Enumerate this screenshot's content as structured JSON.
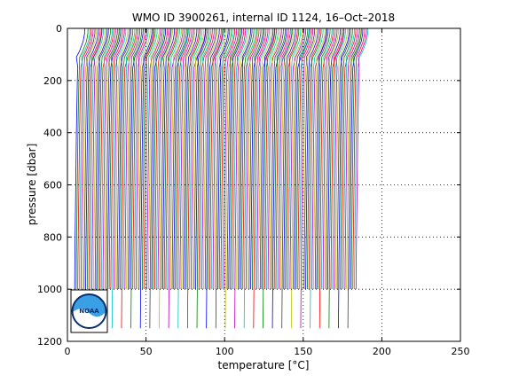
{
  "chart_data": {
    "type": "line",
    "title": "WMO ID 3900261, internal ID 1124, 16–Oct–2018",
    "xlabel": "temperature [°C]",
    "ylabel": "pressure [dbar]",
    "xlim": [
      0,
      250
    ],
    "ylim": [
      1200,
      0
    ],
    "y_reversed": true,
    "xticks": [
      "0",
      "50",
      "100",
      "150",
      "200",
      "250"
    ],
    "yticks": [
      "0",
      "200",
      "400",
      "600",
      "800",
      "1000",
      "1200"
    ],
    "grid": "dotted",
    "profile_offset_degC": 1,
    "profile_count": 180,
    "series_colors": [
      "#0000ff",
      "#008000",
      "#ff0000",
      "#00bfbf",
      "#bf00bf",
      "#bfbf00",
      "#404040"
    ],
    "representative_profile": {
      "pressure": [
        0,
        20,
        50,
        90,
        110,
        150,
        200,
        300,
        400,
        500,
        600,
        700,
        800,
        900,
        1000
      ],
      "temperature": [
        8.5,
        8.4,
        7.5,
        5.0,
        3.2,
        2.6,
        2.3,
        2.0,
        1.7,
        1.5,
        1.3,
        1.1,
        0.9,
        0.7,
        0.6
      ]
    }
  },
  "logo": {
    "text": "NOAA"
  }
}
